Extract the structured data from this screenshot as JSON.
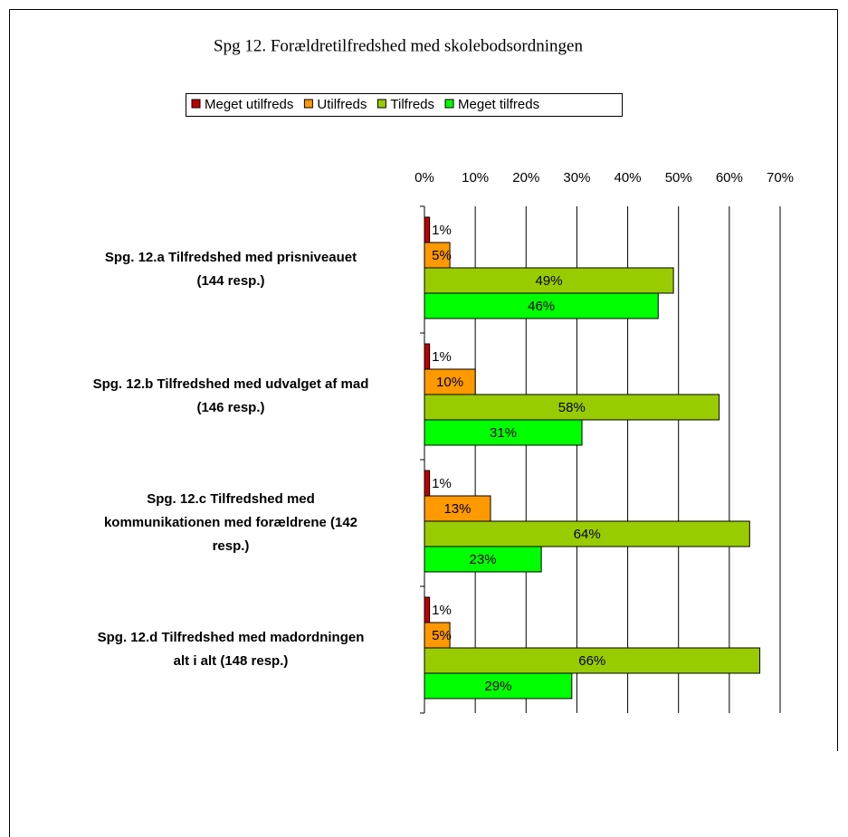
{
  "chart_data": {
    "type": "hbar",
    "title": "Spg 12. Forældretilfredshed med skolebodsordningen",
    "categories": [
      "Spg. 12.a Tilfredshed med prisniveauet\n(144 resp.)",
      "Spg. 12.b Tilfredshed med udvalget af mad\n(146 resp.)",
      "Spg. 12.c Tilfredshed med\nkommunikationen med forældrene (142\nresp.)",
      "Spg. 12.d Tilfredshed med madordningen\nalt i alt (148 resp.)"
    ],
    "series": [
      {
        "name": "Meget utilfreds",
        "color": "#c00000",
        "values": [
          1,
          1,
          1,
          1
        ],
        "value_labels": [
          "1%",
          "1%",
          "1%",
          "1%"
        ]
      },
      {
        "name": "Utilfreds",
        "color": "#ff9900",
        "values": [
          5,
          10,
          13,
          5
        ],
        "value_labels": [
          "5%",
          "10%",
          "13%",
          "5%"
        ]
      },
      {
        "name": "Tilfreds",
        "color": "#99cc00",
        "values": [
          49,
          58,
          64,
          66
        ],
        "value_labels": [
          "49%",
          "58%",
          "64%",
          "66%"
        ]
      },
      {
        "name": "Meget tilfreds",
        "color": "#00ff00",
        "values": [
          46,
          31,
          23,
          29
        ],
        "value_labels": [
          "46%",
          "31%",
          "23%",
          "29%"
        ]
      }
    ],
    "xlim": [
      0,
      70
    ],
    "xticks": [
      {
        "value": 0,
        "label": "0%"
      },
      {
        "value": 10,
        "label": "10%"
      },
      {
        "value": 20,
        "label": "20%"
      },
      {
        "value": 30,
        "label": "30%"
      },
      {
        "value": 40,
        "label": "40%"
      },
      {
        "value": 50,
        "label": "50%"
      },
      {
        "value": 60,
        "label": "60%"
      },
      {
        "value": 70,
        "label": "70%"
      }
    ],
    "grid": true,
    "legend": "top"
  }
}
